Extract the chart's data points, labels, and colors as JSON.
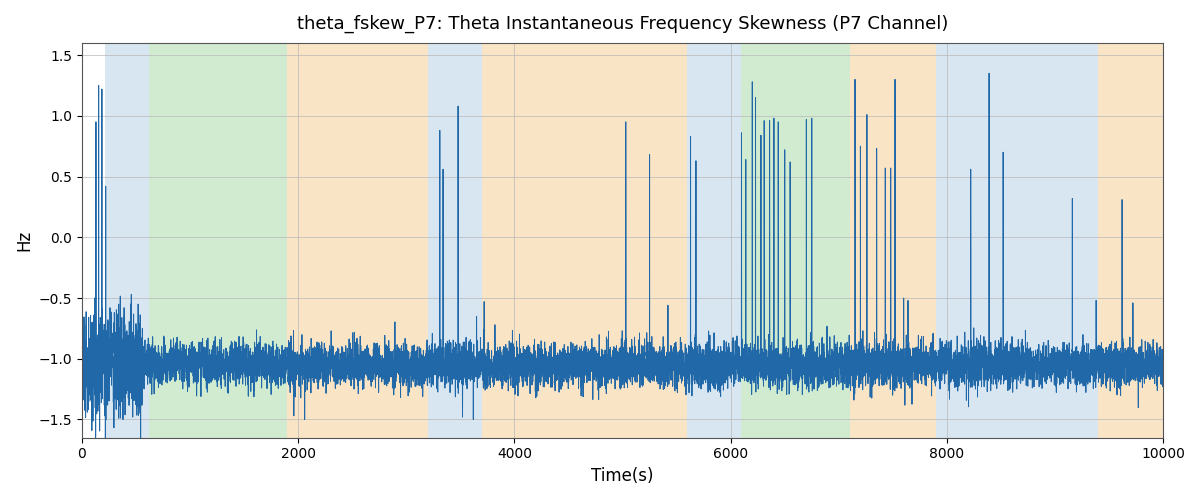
{
  "title": "theta_fskew_P7: Theta Instantaneous Frequency Skewness (P7 Channel)",
  "xlabel": "Time(s)",
  "ylabel": "Hz",
  "xlim": [
    0,
    10000
  ],
  "ylim": [
    -1.65,
    1.6
  ],
  "yticks": [
    -1.5,
    -1.0,
    -0.5,
    0.0,
    0.5,
    1.0,
    1.5
  ],
  "xticks": [
    0,
    2000,
    4000,
    6000,
    8000,
    10000
  ],
  "line_color": "#2068a8",
  "line_width": 0.7,
  "background_color": "#ffffff",
  "grid_color": "#b8b8b8",
  "figsize": [
    12,
    5
  ],
  "dpi": 100,
  "bands": [
    {
      "xmin": 210,
      "xmax": 620,
      "color": "#aac8e0",
      "alpha": 0.45
    },
    {
      "xmin": 620,
      "xmax": 1900,
      "color": "#88cc88",
      "alpha": 0.38
    },
    {
      "xmin": 1900,
      "xmax": 3200,
      "color": "#f5c888",
      "alpha": 0.48
    },
    {
      "xmin": 3200,
      "xmax": 3700,
      "color": "#aac8e0",
      "alpha": 0.45
    },
    {
      "xmin": 3700,
      "xmax": 5600,
      "color": "#f5c888",
      "alpha": 0.48
    },
    {
      "xmin": 5600,
      "xmax": 6100,
      "color": "#aac8e0",
      "alpha": 0.45
    },
    {
      "xmin": 6100,
      "xmax": 7100,
      "color": "#88cc88",
      "alpha": 0.38
    },
    {
      "xmin": 7100,
      "xmax": 7900,
      "color": "#f5c888",
      "alpha": 0.48
    },
    {
      "xmin": 7900,
      "xmax": 9400,
      "color": "#aac8e0",
      "alpha": 0.45
    },
    {
      "xmin": 9400,
      "xmax": 10000,
      "color": "#f5c888",
      "alpha": 0.48
    }
  ],
  "seed": 42,
  "n_points": 10000,
  "base_level": -1.05,
  "noise_std": 0.09,
  "early_noise_std": 0.22,
  "early_end": 560,
  "spikes": [
    [
      130,
      0.95
    ],
    [
      155,
      1.25
    ],
    [
      185,
      1.22
    ],
    [
      220,
      0.42
    ],
    [
      260,
      -0.58
    ],
    [
      300,
      -0.62
    ],
    [
      340,
      -0.55
    ],
    [
      390,
      -0.58
    ],
    [
      450,
      -0.55
    ],
    [
      520,
      -0.55
    ],
    [
      3310,
      0.88
    ],
    [
      3340,
      0.56
    ],
    [
      3480,
      1.08
    ],
    [
      3650,
      -0.65
    ],
    [
      3720,
      -0.53
    ],
    [
      3820,
      -0.72
    ],
    [
      5030,
      0.95
    ],
    [
      5250,
      0.68
    ],
    [
      5420,
      -0.56
    ],
    [
      5630,
      0.83
    ],
    [
      5680,
      0.63
    ],
    [
      6100,
      0.86
    ],
    [
      6140,
      0.64
    ],
    [
      6200,
      1.28
    ],
    [
      6230,
      1.15
    ],
    [
      6280,
      0.84
    ],
    [
      6310,
      0.96
    ],
    [
      6360,
      0.96
    ],
    [
      6400,
      0.98
    ],
    [
      6440,
      0.95
    ],
    [
      6500,
      0.72
    ],
    [
      6550,
      0.62
    ],
    [
      6700,
      0.97
    ],
    [
      6750,
      0.98
    ],
    [
      7150,
      1.3
    ],
    [
      7200,
      0.75
    ],
    [
      7260,
      1.01
    ],
    [
      7350,
      0.73
    ],
    [
      7430,
      0.57
    ],
    [
      7480,
      0.57
    ],
    [
      7520,
      1.3
    ],
    [
      7600,
      -0.5
    ],
    [
      7640,
      -0.52
    ],
    [
      8220,
      0.56
    ],
    [
      8390,
      1.35
    ],
    [
      8520,
      0.7
    ],
    [
      9160,
      0.32
    ],
    [
      9380,
      -0.52
    ],
    [
      9620,
      0.31
    ],
    [
      9720,
      -0.54
    ]
  ],
  "dips": [
    [
      380,
      -1.5
    ],
    [
      470,
      -1.48
    ],
    [
      1960,
      -1.47
    ],
    [
      2060,
      -1.5
    ],
    [
      3520,
      -1.48
    ],
    [
      3620,
      -1.5
    ]
  ]
}
